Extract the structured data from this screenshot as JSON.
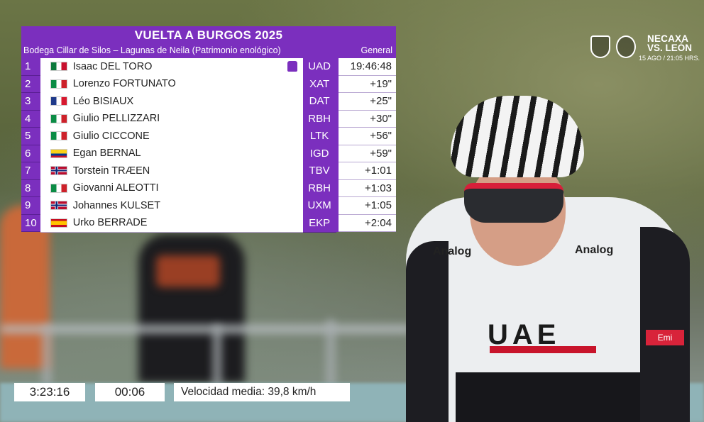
{
  "standings": {
    "title": "VUELTA A BURGOS 2025",
    "stage": "Bodega Cillar de Silos – Lagunas de Neila (Patrimonio enológico)",
    "classification": "General",
    "leader_jersey_color": "#7b2fbe",
    "rows": [
      {
        "pos": "1",
        "flag": "MX",
        "name": "Isaac DEL TORO",
        "team": "UAD",
        "time": "19:46:48",
        "leader": true
      },
      {
        "pos": "2",
        "flag": "IT",
        "name": "Lorenzo FORTUNATO",
        "team": "XAT",
        "time": "+19\""
      },
      {
        "pos": "3",
        "flag": "FR",
        "name": "Léo BISIAUX",
        "team": "DAT",
        "time": "+25\""
      },
      {
        "pos": "4",
        "flag": "IT",
        "name": "Giulio PELLIZZARI",
        "team": "RBH",
        "time": "+30\""
      },
      {
        "pos": "5",
        "flag": "IT",
        "name": "Giulio CICCONE",
        "team": "LTK",
        "time": "+56\""
      },
      {
        "pos": "6",
        "flag": "CO",
        "name": "Egan BERNAL",
        "team": "IGD",
        "time": "+59\""
      },
      {
        "pos": "7",
        "flag": "NO",
        "name": "Torstein TRÆEN",
        "team": "TBV",
        "time": "+1:01"
      },
      {
        "pos": "8",
        "flag": "IT",
        "name": "Giovanni ALEOTTI",
        "team": "RBH",
        "time": "+1:03"
      },
      {
        "pos": "9",
        "flag": "NO",
        "name": "Johannes KULSET",
        "team": "UXM",
        "time": "+1:05"
      },
      {
        "pos": "10",
        "flag": "ES",
        "name": "Urko BERRADE",
        "team": "EKP",
        "time": "+2:04"
      }
    ]
  },
  "timers": {
    "elapsed": "3:23:16",
    "gap": "00:06",
    "avg_speed": "Velocidad media: 39,8 km/h"
  },
  "promo": {
    "line1": "NECAXA",
    "line2": "VS. LEÓN",
    "line3": "15 AGO / 21:05 HRS."
  },
  "rider_kit": {
    "sponsor_main": "UAE",
    "sponsor_secondary": "Analog",
    "sponsor_side": "Emi"
  },
  "colors": {
    "panel_purple": "#7b2fbe",
    "kit_red": "#c8142b"
  }
}
